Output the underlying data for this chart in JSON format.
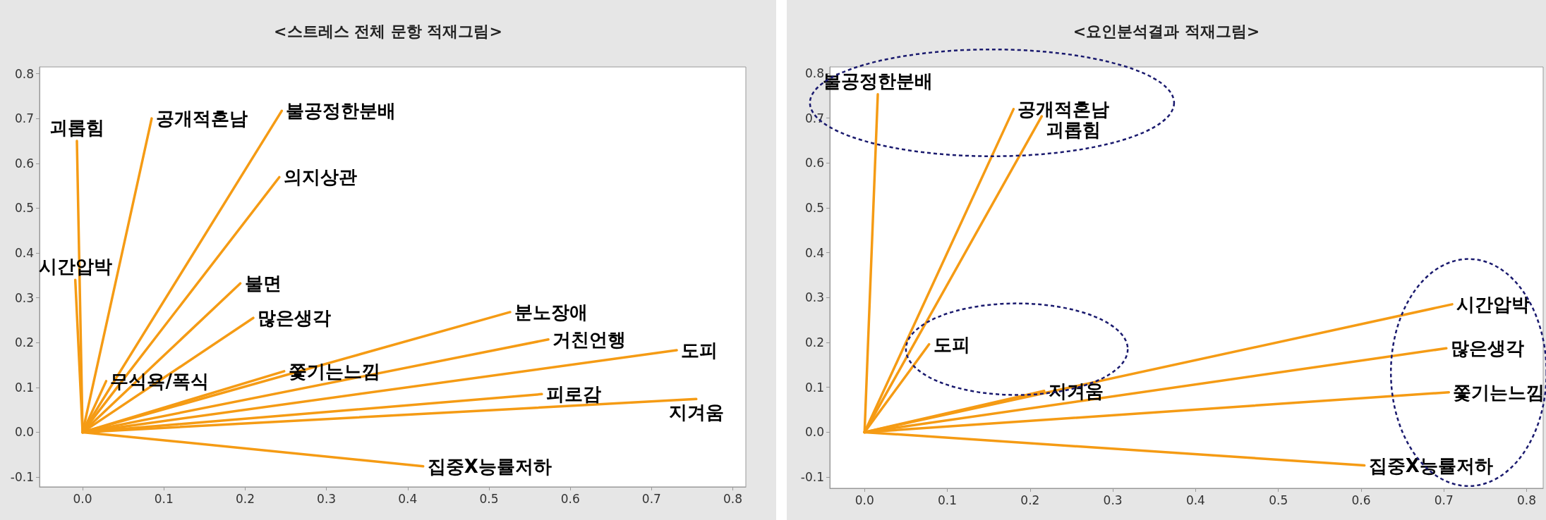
{
  "chart_data": [
    {
      "type": "line",
      "title": "<스트레스 전체 문항 적재그림>",
      "marker": "none",
      "grid": false,
      "xlim": [
        -0.053,
        0.816
      ],
      "xticks": [
        {
          "value": 0,
          "label": "0.0"
        },
        0.1,
        0.2,
        0.3,
        0.4,
        0.5,
        0.6,
        0.7,
        0.8
      ],
      "ylim": [
        -0.122,
        0.815
      ],
      "yticks": [
        -0.1,
        {
          "value": 0,
          "label": "0.0"
        },
        0.1,
        0.2,
        0.3,
        0.4,
        0.5,
        0.6,
        0.7,
        0.8
      ],
      "series": [
        {
          "name": "괴롭힘",
          "color": "#f59b14",
          "x": [
            0,
            -0.007
          ],
          "values": [
            0,
            0.65
          ]
        },
        {
          "name": "시간압박",
          "color": "#f59b14",
          "x": [
            0,
            -0.009
          ],
          "values": [
            0,
            0.34
          ]
        },
        {
          "name": "공개적혼남",
          "color": "#f59b14",
          "x": [
            0,
            0.085
          ],
          "values": [
            0,
            0.7
          ]
        },
        {
          "name": "불공정한분배",
          "color": "#f59b14",
          "x": [
            0,
            0.245
          ],
          "values": [
            0,
            0.717
          ]
        },
        {
          "name": "의지상관",
          "color": "#f59b14",
          "x": [
            0,
            0.242
          ],
          "values": [
            0,
            0.569
          ]
        },
        {
          "name": "불면",
          "color": "#f59b14",
          "x": [
            0,
            0.194
          ],
          "values": [
            0,
            0.332
          ]
        },
        {
          "name": "많은생각",
          "color": "#f59b14",
          "x": [
            0,
            0.21
          ],
          "values": [
            0,
            0.255
          ]
        },
        {
          "name": "무식욕/폭식",
          "color": "#f59b14",
          "x": [
            0,
            0.029
          ],
          "values": [
            0,
            0.114
          ]
        },
        {
          "name": "쫓기는느낌",
          "color": "#f59b14",
          "x": [
            0,
            0.248
          ],
          "values": [
            0,
            0.136
          ]
        },
        {
          "name": "분노장애",
          "color": "#f59b14",
          "x": [
            0,
            0.526
          ],
          "values": [
            0,
            0.268
          ]
        },
        {
          "name": "거친언행",
          "color": "#f59b14",
          "x": [
            0,
            0.573
          ],
          "values": [
            0,
            0.207
          ]
        },
        {
          "name": "도피",
          "color": "#f59b14",
          "x": [
            0,
            0.731
          ],
          "values": [
            0,
            0.183
          ]
        },
        {
          "name": "피로감",
          "color": "#f59b14",
          "x": [
            0,
            0.565
          ],
          "values": [
            0,
            0.085
          ]
        },
        {
          "name": "지겨움",
          "color": "#f59b14",
          "x": [
            0,
            0.755
          ],
          "values": [
            0,
            0.074
          ]
        },
        {
          "name": "집중X능률저하",
          "color": "#f59b14",
          "x": [
            0,
            0.419
          ],
          "values": [
            0,
            -0.076
          ]
        }
      ]
    },
    {
      "type": "line",
      "title": "<요인분석결과 적재그림>",
      "marker": "none",
      "grid": false,
      "xlim": [
        -0.042,
        0.82
      ],
      "xticks": [
        {
          "value": 0,
          "label": "0.0"
        },
        0.1,
        0.2,
        0.3,
        0.4,
        0.5,
        0.6,
        0.7,
        0.8
      ],
      "ylim": [
        -0.125,
        0.814
      ],
      "yticks": [
        -0.1,
        {
          "value": 0,
          "label": "0.0"
        },
        0.1,
        0.2,
        0.3,
        0.4,
        0.5,
        0.6,
        0.7,
        0.8
      ],
      "series": [
        {
          "name": "불공정한분배",
          "color": "#f59b14",
          "x": [
            0,
            0.016
          ],
          "values": [
            0,
            0.753
          ]
        },
        {
          "name": "공개적혼남",
          "color": "#f59b14",
          "x": [
            0,
            0.18
          ],
          "values": [
            0,
            0.72
          ]
        },
        {
          "name": "괴롭힘",
          "color": "#f59b14",
          "x": [
            0,
            0.214
          ],
          "values": [
            0,
            0.704
          ]
        },
        {
          "name": "도피",
          "color": "#f59b14",
          "x": [
            0,
            0.078
          ],
          "values": [
            0,
            0.196
          ]
        },
        {
          "name": "지겨움",
          "color": "#f59b14",
          "x": [
            0,
            0.217
          ],
          "values": [
            0,
            0.092
          ]
        },
        {
          "name": "시간압박",
          "color": "#f59b14",
          "x": [
            0,
            0.71
          ],
          "values": [
            0,
            0.285
          ]
        },
        {
          "name": "많은생각",
          "color": "#f59b14",
          "x": [
            0,
            0.703
          ],
          "values": [
            0,
            0.187
          ]
        },
        {
          "name": "쫓기는느낌",
          "color": "#f59b14",
          "x": [
            0,
            0.706
          ],
          "values": [
            0,
            0.089
          ]
        },
        {
          "name": "집중X능률저하",
          "color": "#f59b14",
          "x": [
            0,
            0.604
          ],
          "values": [
            0,
            -0.074
          ]
        }
      ]
    }
  ]
}
